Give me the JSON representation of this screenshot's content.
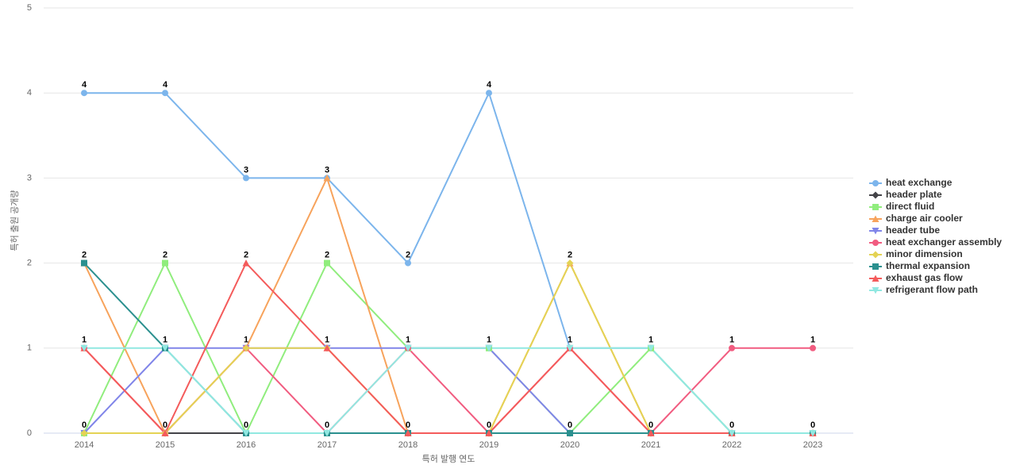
{
  "chart_data": {
    "type": "line",
    "x_label": "특허 발행 연도",
    "y_label": "특허 출원 공개량",
    "categories": [
      "2014",
      "2015",
      "2016",
      "2017",
      "2018",
      "2019",
      "2020",
      "2021",
      "2022",
      "2023"
    ],
    "ylim": [
      0,
      5
    ],
    "yticks": [
      0,
      1,
      2,
      3,
      4,
      5
    ],
    "grid": true,
    "legend": "right",
    "series": [
      {
        "name": "heat exchange",
        "color": "#7cb5ec",
        "symbol": "circle",
        "values": [
          4,
          4,
          3,
          3,
          2,
          4,
          1,
          1,
          0,
          0
        ]
      },
      {
        "name": "header plate",
        "color": "#434348",
        "symbol": "diamond",
        "values": [
          0,
          0,
          0,
          0,
          0,
          0,
          0,
          0,
          0,
          0
        ]
      },
      {
        "name": "direct fluid",
        "color": "#90ed7d",
        "symbol": "square",
        "values": [
          0,
          2,
          0,
          2,
          1,
          1,
          0,
          1,
          0,
          0
        ]
      },
      {
        "name": "charge air cooler",
        "color": "#f7a35c",
        "symbol": "triangle",
        "values": [
          2,
          0,
          1,
          3,
          0,
          0,
          2,
          0,
          0,
          0
        ]
      },
      {
        "name": "header tube",
        "color": "#8085e9",
        "symbol": "triangle-down",
        "values": [
          0,
          1,
          1,
          1,
          1,
          1,
          0,
          0,
          0,
          0
        ]
      },
      {
        "name": "heat exchanger assembly",
        "color": "#f15c80",
        "symbol": "circle",
        "values": [
          1,
          0,
          1,
          0,
          1,
          0,
          1,
          0,
          1,
          1
        ]
      },
      {
        "name": "minor dimension",
        "color": "#e4d354",
        "symbol": "diamond",
        "values": [
          0,
          0,
          1,
          1,
          0,
          0,
          2,
          0,
          0,
          0
        ]
      },
      {
        "name": "thermal expansion",
        "color": "#2b908f",
        "symbol": "square",
        "values": [
          2,
          1,
          0,
          0,
          0,
          0,
          0,
          0,
          0,
          0
        ]
      },
      {
        "name": "exhaust gas flow",
        "color": "#f45b5b",
        "symbol": "triangle",
        "values": [
          1,
          0,
          2,
          1,
          0,
          0,
          1,
          0,
          0,
          0
        ]
      },
      {
        "name": "refrigerant flow path",
        "color": "#91e8e1",
        "symbol": "triangle-down",
        "values": [
          1,
          1,
          0,
          0,
          1,
          1,
          1,
          1,
          0,
          0
        ]
      }
    ]
  }
}
